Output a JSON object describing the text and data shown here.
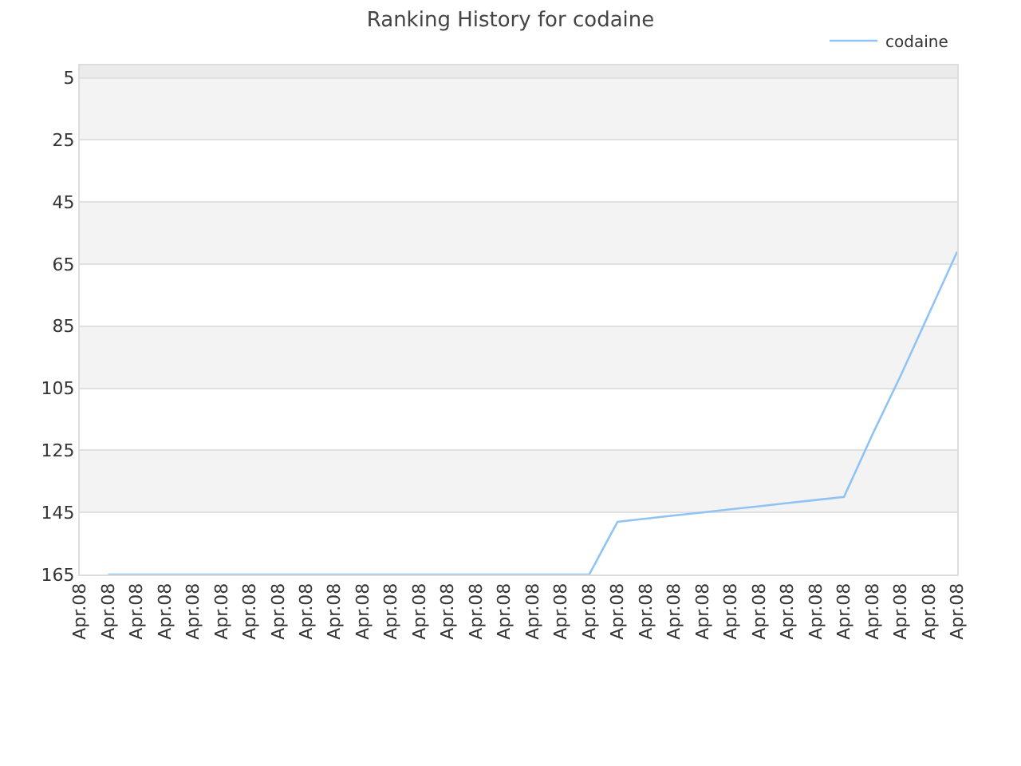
{
  "chart_data": {
    "type": "line",
    "title": "Ranking History for codaine",
    "categories": [
      "Apr.08",
      "Apr.08",
      "Apr.08",
      "Apr.08",
      "Apr.08",
      "Apr.08",
      "Apr.08",
      "Apr.08",
      "Apr.08",
      "Apr.08",
      "Apr.08",
      "Apr.08",
      "Apr.08",
      "Apr.08",
      "Apr.08",
      "Apr.08",
      "Apr.08",
      "Apr.08",
      "Apr.08",
      "Apr.08",
      "Apr.08",
      "Apr.08",
      "Apr.08",
      "Apr.08",
      "Apr.08",
      "Apr.08",
      "Apr.08",
      "Apr.08",
      "Apr.08",
      "Apr.08",
      "Apr.08",
      "Apr.08"
    ],
    "series": [
      {
        "name": "codaine",
        "color": "#90c3f5",
        "values": [
          null,
          165,
          165,
          165,
          165,
          165,
          165,
          165,
          165,
          165,
          165,
          165,
          165,
          165,
          165,
          165,
          165,
          165,
          165,
          148,
          147,
          146,
          145,
          144,
          143,
          142,
          141,
          140,
          120,
          101,
          81,
          61
        ]
      }
    ],
    "ylim": [
      165,
      1
    ],
    "yticks": [
      5,
      25,
      45,
      65,
      85,
      105,
      125,
      145,
      165
    ],
    "bands": [
      {
        "axis": "y",
        "from": 1,
        "to": 5,
        "color": "#ebebeb"
      },
      {
        "axis": "y",
        "from": 5,
        "to": 25,
        "color": "#f3f3f3"
      },
      {
        "axis": "y",
        "from": 45,
        "to": 65,
        "color": "#f3f3f3"
      },
      {
        "axis": "y",
        "from": 85,
        "to": 105,
        "color": "#f3f3f3"
      },
      {
        "axis": "y",
        "from": 125,
        "to": 145,
        "color": "#f3f3f3"
      }
    ],
    "grid": "y",
    "legend": "top right",
    "marker": "none",
    "line_style": "solid"
  }
}
